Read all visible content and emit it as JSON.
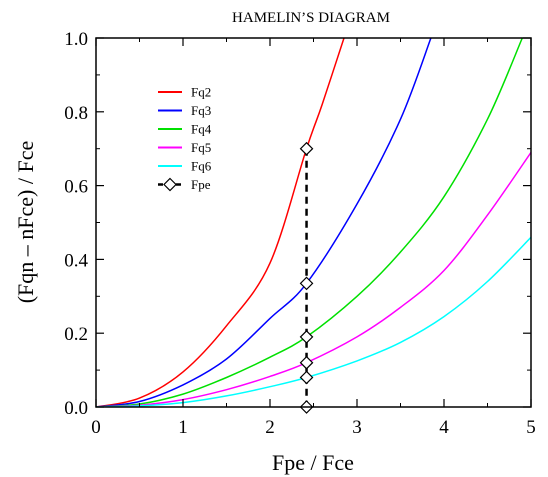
{
  "chart_data": {
    "type": "line",
    "title": "HAMELIN’S DIAGRAM",
    "xlabel": "Fpe / Fce",
    "ylabel": "(Fqn – nFce) / Fce",
    "xlim": [
      0,
      5
    ],
    "ylim": [
      0,
      1.0
    ],
    "xticks": [
      "0",
      "1",
      "2",
      "3",
      "4",
      "5"
    ],
    "yticks": [
      "0.0",
      "0.2",
      "0.4",
      "0.6",
      "0.8",
      "1.0"
    ],
    "grid": false,
    "legend_position": "top-left",
    "series": [
      {
        "name": "Fq2",
        "color": "#ff0000",
        "n": 2,
        "x": [
          0,
          0.5,
          1.0,
          1.5,
          2.0,
          2.42,
          2.6,
          2.85
        ],
        "y": [
          0,
          0.024,
          0.095,
          0.22,
          0.39,
          0.7,
          0.82,
          1.0
        ]
      },
      {
        "name": "Fq3",
        "color": "#0000ff",
        "n": 3,
        "x": [
          0,
          0.5,
          1.0,
          1.5,
          2.0,
          2.42,
          3.0,
          3.5,
          3.85
        ],
        "y": [
          0,
          0.015,
          0.06,
          0.13,
          0.24,
          0.335,
          0.55,
          0.78,
          1.0
        ]
      },
      {
        "name": "Fq4",
        "color": "#00e000",
        "n": 4,
        "x": [
          0,
          0.5,
          1.0,
          1.5,
          2.0,
          2.42,
          3.0,
          3.5,
          4.0,
          4.5,
          4.9
        ],
        "y": [
          0,
          0.008,
          0.035,
          0.08,
          0.135,
          0.19,
          0.3,
          0.42,
          0.57,
          0.78,
          1.0
        ]
      },
      {
        "name": "Fq5",
        "color": "#ff00ff",
        "n": 5,
        "x": [
          0,
          0.5,
          1.0,
          1.5,
          2.0,
          2.42,
          3.0,
          3.5,
          4.0,
          4.5,
          5.0
        ],
        "y": [
          0,
          0.005,
          0.02,
          0.047,
          0.083,
          0.12,
          0.19,
          0.27,
          0.37,
          0.52,
          0.69
        ]
      },
      {
        "name": "Fq6",
        "color": "#00ffff",
        "n": 6,
        "x": [
          0,
          0.5,
          1.0,
          1.5,
          2.0,
          2.42,
          3.0,
          3.5,
          4.0,
          4.5,
          5.0
        ],
        "y": [
          0,
          0.003,
          0.012,
          0.03,
          0.055,
          0.08,
          0.125,
          0.175,
          0.245,
          0.34,
          0.46
        ]
      }
    ],
    "fpe": {
      "name": "Fpe",
      "color": "#000000",
      "x": 2.42,
      "markers_y": [
        0.7,
        0.335,
        0.19,
        0.12,
        0.08,
        0.0
      ]
    }
  }
}
